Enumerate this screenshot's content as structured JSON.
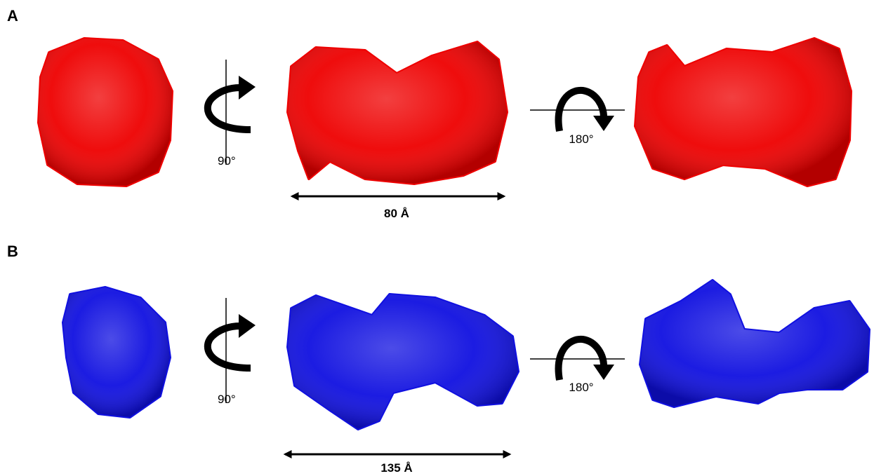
{
  "panels": [
    {
      "label": "A",
      "color": "#ee0000",
      "rotation_1": "90°",
      "rotation_2": "180°",
      "dimension": "80 Å"
    },
    {
      "label": "B",
      "color": "#1010e0",
      "rotation_1": "90°",
      "rotation_2": "180°",
      "dimension": "135 Å"
    }
  ]
}
